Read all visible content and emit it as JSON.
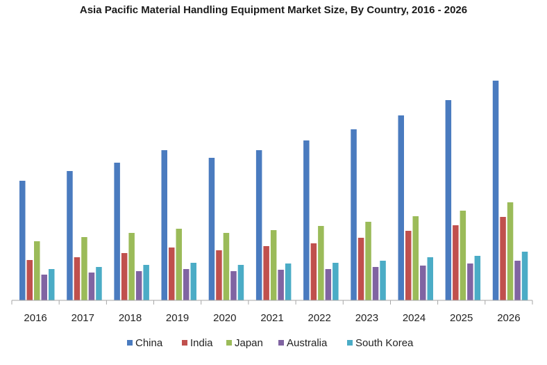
{
  "chart_data": {
    "type": "bar",
    "title": "Asia Pacific Material Handling Equipment Market Size, By Country, 2016 - 2026",
    "xlabel": "",
    "ylabel": "",
    "categories": [
      "2016",
      "2017",
      "2018",
      "2019",
      "2020",
      "2021",
      "2022",
      "2023",
      "2024",
      "2025",
      "2026"
    ],
    "ylim": [
      0,
      340
    ],
    "grid": false,
    "legend_position": "bottom",
    "series": [
      {
        "name": "China",
        "color": "#4a7bbf",
        "values": [
          172,
          186,
          198,
          216,
          205,
          216,
          230,
          246,
          266,
          288,
          316
        ]
      },
      {
        "name": "India",
        "color": "#c0504d",
        "values": [
          58,
          62,
          68,
          76,
          72,
          78,
          82,
          90,
          100,
          108,
          120
        ]
      },
      {
        "name": "Japan",
        "color": "#9bbb59",
        "values": [
          85,
          91,
          97,
          103,
          97,
          101,
          107,
          113,
          121,
          129,
          141
        ]
      },
      {
        "name": "Australia",
        "color": "#8064a2",
        "values": [
          37,
          40,
          42,
          45,
          42,
          44,
          45,
          48,
          50,
          53,
          57
        ]
      },
      {
        "name": "South Korea",
        "color": "#4bacc6",
        "values": [
          45,
          48,
          51,
          54,
          51,
          53,
          54,
          57,
          62,
          64,
          70
        ]
      }
    ]
  }
}
